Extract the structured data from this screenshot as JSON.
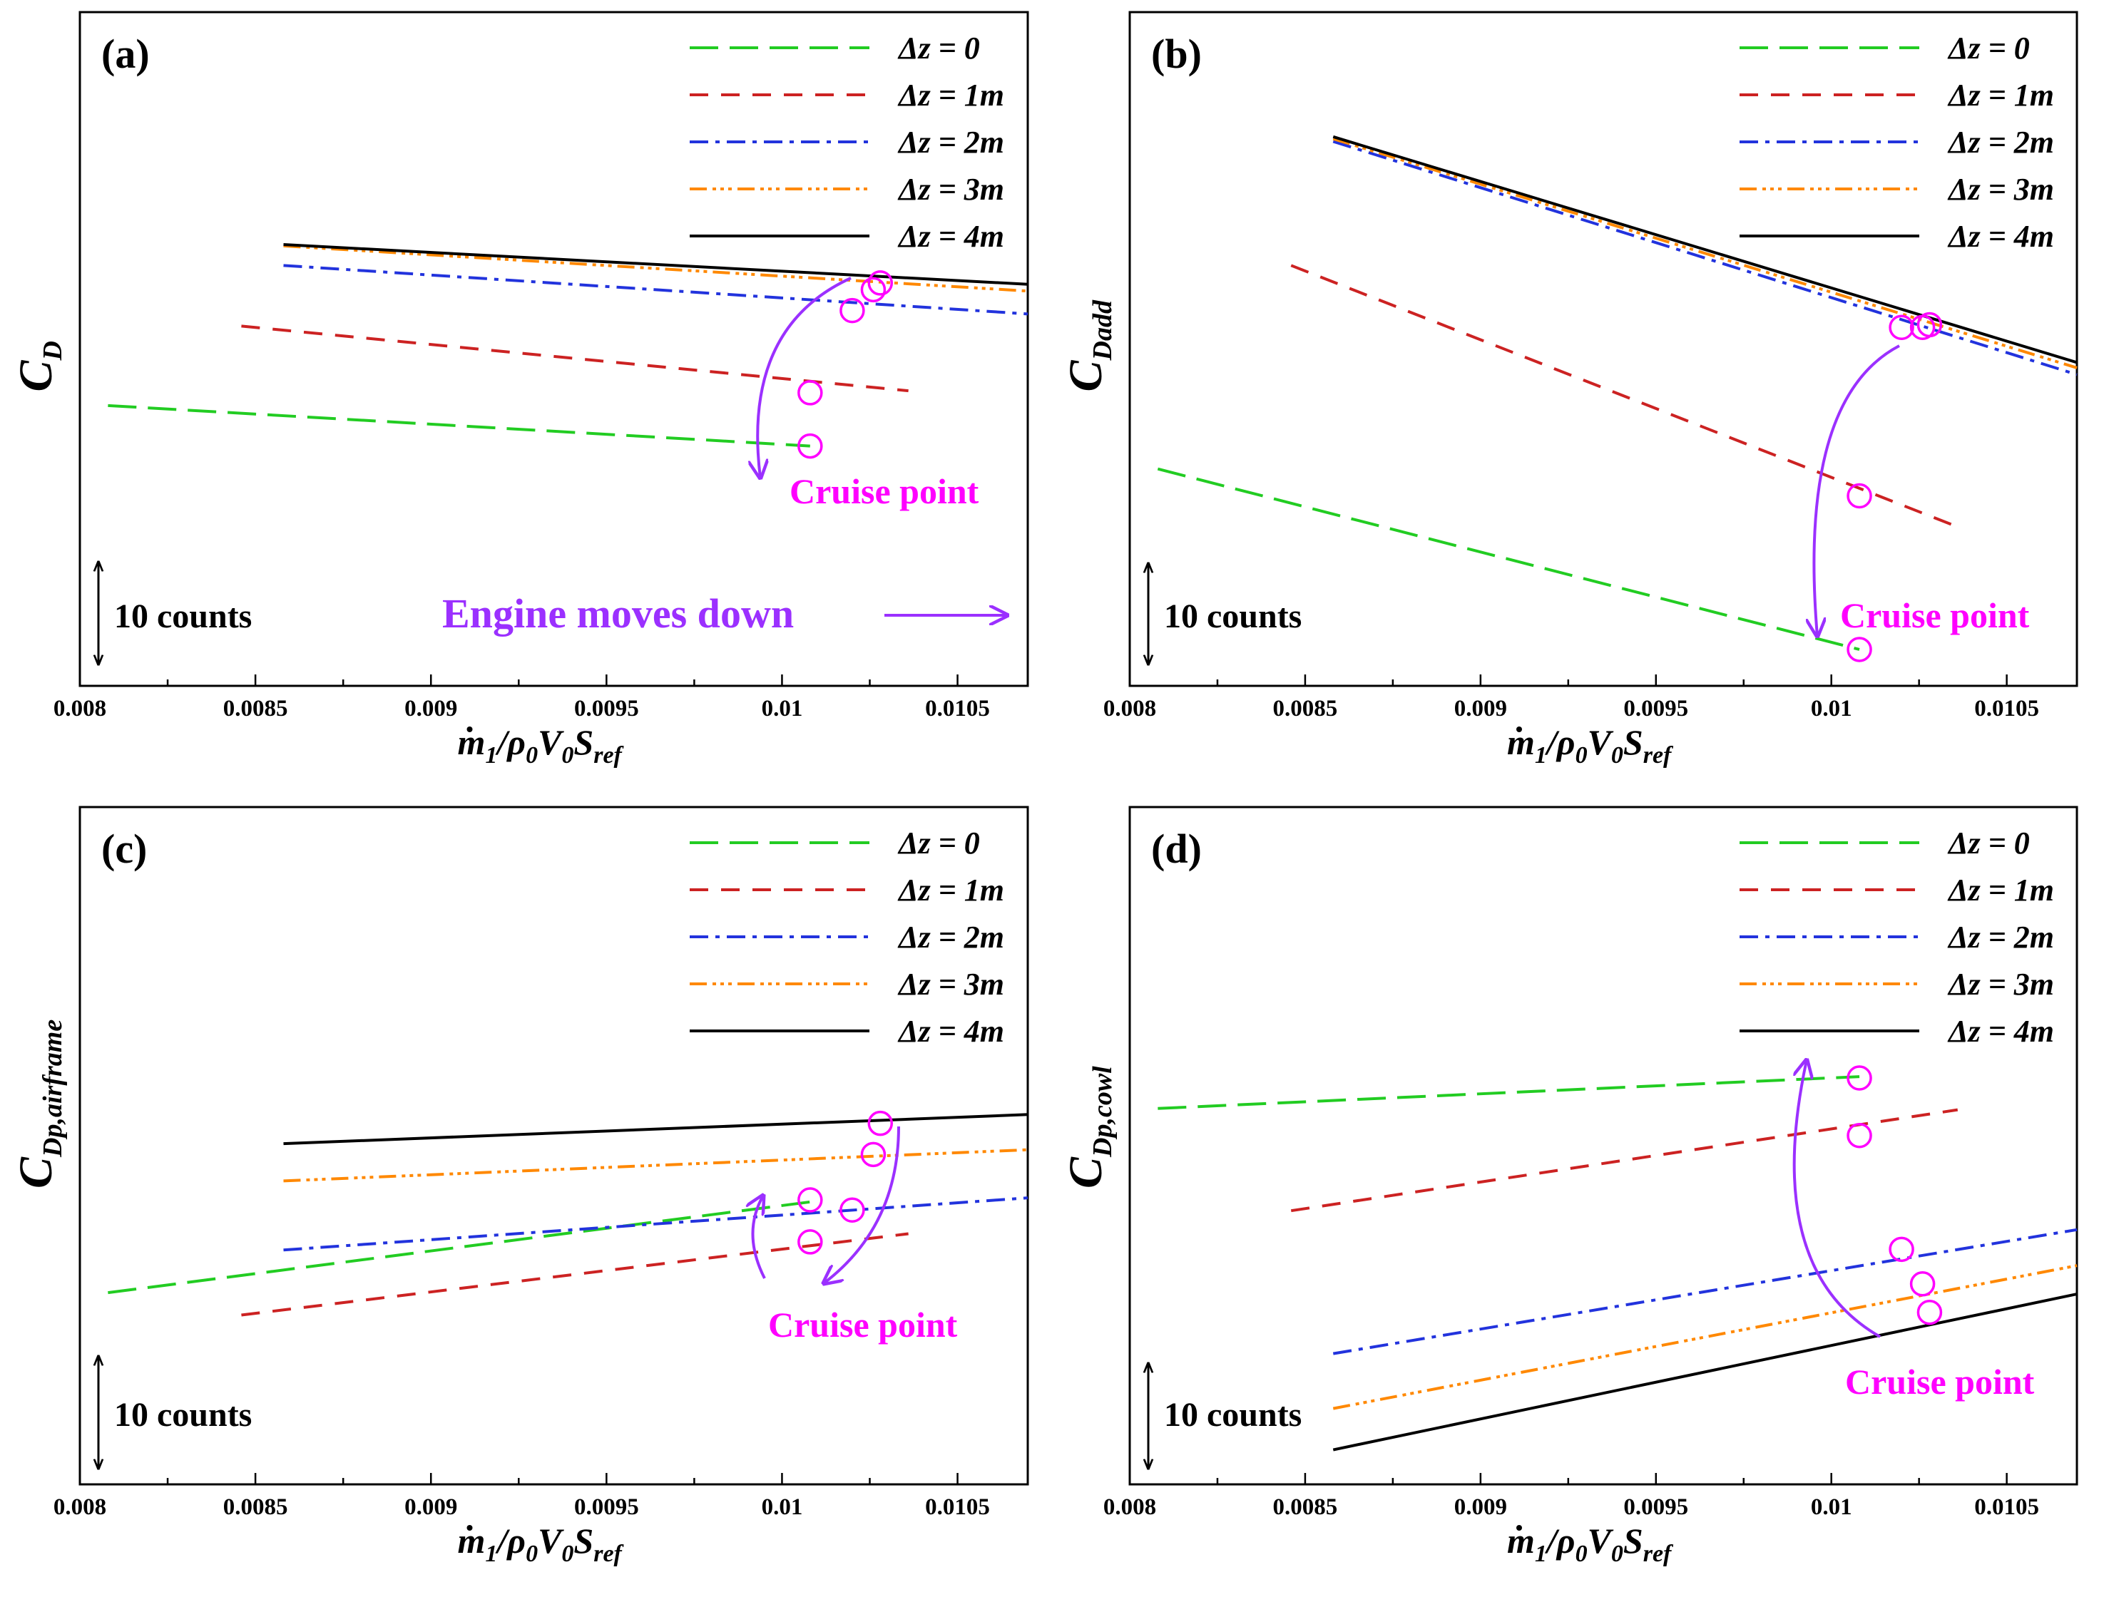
{
  "figure": {
    "xlabel_parts": [
      "m",
      "1",
      "/ρ",
      "0",
      "V",
      "0",
      "S",
      "ref"
    ],
    "counts_label": "10 counts",
    "cruise_label": "Cruise point",
    "engine_moves_label": "Engine moves down",
    "colors": {
      "dz0": "#22cc22",
      "dz1": "#cc2222",
      "dz2": "#2233dd",
      "dz3": "#ff8800",
      "dz4": "#000000",
      "marker": "#ff00ff",
      "arrow": "#9b30ff"
    },
    "legend": [
      "Δz = 0",
      "Δz = 1m",
      "Δz = 2m",
      "Δz = 3m",
      "Δz = 4m"
    ]
  },
  "chart_data": [
    {
      "panel": "(a)",
      "type": "line",
      "ylabel_main": "C",
      "ylabel_sub": "D",
      "xlim": [
        0.008,
        0.0107
      ],
      "ylim": [
        0,
        100
      ],
      "xticks": [
        "0.008",
        "0.0085",
        "0.009",
        "0.0095",
        "0.01",
        "0.0105"
      ],
      "series": [
        {
          "name": "Δz = 0",
          "x": [
            0.00808,
            0.01008
          ],
          "y": [
            41.6,
            35.6
          ]
        },
        {
          "name": "Δz = 1m",
          "x": [
            0.00846,
            0.01036
          ],
          "y": [
            53.4,
            43.8
          ]
        },
        {
          "name": "Δz = 2m",
          "x": [
            0.00858,
            0.0107
          ],
          "y": [
            62.4,
            55.2
          ]
        },
        {
          "name": "Δz = 3m",
          "x": [
            0.00858,
            0.0107
          ],
          "y": [
            65.3,
            58.6
          ]
        },
        {
          "name": "Δz = 4m",
          "x": [
            0.00858,
            0.0107
          ],
          "y": [
            65.5,
            59.6
          ]
        }
      ],
      "cruise_points": [
        {
          "x": 0.01008,
          "y": 35.6
        },
        {
          "x": 0.01008,
          "y": 43.5
        },
        {
          "x": 0.0102,
          "y": 55.7
        },
        {
          "x": 0.01026,
          "y": 58.8
        },
        {
          "x": 0.01028,
          "y": 59.8
        }
      ],
      "annotations": [
        "Cruise point",
        "10 counts",
        "Engine moves down"
      ]
    },
    {
      "panel": "(b)",
      "type": "line",
      "ylabel_main": "C",
      "ylabel_sub": "Dadd",
      "xlim": [
        0.008,
        0.0107
      ],
      "ylim": [
        0,
        100
      ],
      "xticks": [
        "0.008",
        "0.0085",
        "0.009",
        "0.0095",
        "0.01",
        "0.0105"
      ],
      "series": [
        {
          "name": "Δz = 0",
          "x": [
            0.00808,
            0.01008
          ],
          "y": [
            32.2,
            5.4
          ]
        },
        {
          "name": "Δz = 1m",
          "x": [
            0.00846,
            0.01036
          ],
          "y": [
            62.4,
            23.6
          ]
        },
        {
          "name": "Δz = 2m",
          "x": [
            0.00858,
            0.0107
          ],
          "y": [
            80.8,
            46.2
          ]
        },
        {
          "name": "Δz = 3m",
          "x": [
            0.00858,
            0.0107
          ],
          "y": [
            81.2,
            47.2
          ]
        },
        {
          "name": "Δz = 4m",
          "x": [
            0.00858,
            0.0107
          ],
          "y": [
            81.5,
            48.0
          ]
        }
      ],
      "cruise_points": [
        {
          "x": 0.01008,
          "y": 5.4
        },
        {
          "x": 0.01008,
          "y": 28.2
        },
        {
          "x": 0.0102,
          "y": 53.2
        },
        {
          "x": 0.01026,
          "y": 53.2
        },
        {
          "x": 0.01028,
          "y": 53.6
        }
      ],
      "annotations": [
        "Cruise point",
        "10 counts"
      ]
    },
    {
      "panel": "(c)",
      "type": "line",
      "ylabel_main": "C",
      "ylabel_sub": "Dp,airframe",
      "xlim": [
        0.008,
        0.0107
      ],
      "ylim": [
        0,
        100
      ],
      "xticks": [
        "0.008",
        "0.0085",
        "0.009",
        "0.0095",
        "0.01",
        "0.0105"
      ],
      "series": [
        {
          "name": "Δz = 0",
          "x": [
            0.00808,
            0.01008
          ],
          "y": [
            28.3,
            41.7
          ]
        },
        {
          "name": "Δz = 1m",
          "x": [
            0.00846,
            0.01036
          ],
          "y": [
            25.0,
            37.0
          ]
        },
        {
          "name": "Δz = 2m",
          "x": [
            0.00858,
            0.0107
          ],
          "y": [
            34.6,
            42.3
          ]
        },
        {
          "name": "Δz = 3m",
          "x": [
            0.00858,
            0.0107
          ],
          "y": [
            44.8,
            49.4
          ]
        },
        {
          "name": "Δz = 4m",
          "x": [
            0.00858,
            0.0107
          ],
          "y": [
            50.3,
            54.6
          ]
        }
      ],
      "cruise_points": [
        {
          "x": 0.01008,
          "y": 42.0
        },
        {
          "x": 0.01008,
          "y": 35.8
        },
        {
          "x": 0.0102,
          "y": 40.5
        },
        {
          "x": 0.01026,
          "y": 48.7
        },
        {
          "x": 0.01028,
          "y": 53.3
        }
      ],
      "annotations": [
        "Cruise point",
        "10 counts"
      ]
    },
    {
      "panel": "(d)",
      "type": "line",
      "ylabel_main": "C",
      "ylabel_sub": "Dp,cowl",
      "xlim": [
        0.008,
        0.0107
      ],
      "ylim": [
        0,
        100
      ],
      "xticks": [
        "0.008",
        "0.0085",
        "0.009",
        "0.0095",
        "0.01",
        "0.0105"
      ],
      "series": [
        {
          "name": "Δz = 0",
          "x": [
            0.00808,
            0.01008
          ],
          "y": [
            55.5,
            60.2
          ]
        },
        {
          "name": "Δz = 1m",
          "x": [
            0.00846,
            0.01036
          ],
          "y": [
            40.4,
            55.3
          ]
        },
        {
          "name": "Δz = 2m",
          "x": [
            0.00858,
            0.0107
          ],
          "y": [
            19.3,
            37.6
          ]
        },
        {
          "name": "Δz = 3m",
          "x": [
            0.00858,
            0.0107
          ],
          "y": [
            11.2,
            32.3
          ]
        },
        {
          "name": "Δz = 4m",
          "x": [
            0.00858,
            0.0107
          ],
          "y": [
            5.1,
            28.1
          ]
        }
      ],
      "cruise_points": [
        {
          "x": 0.01008,
          "y": 60.0
        },
        {
          "x": 0.01008,
          "y": 51.5
        },
        {
          "x": 0.0102,
          "y": 34.7
        },
        {
          "x": 0.01026,
          "y": 29.6
        },
        {
          "x": 0.01028,
          "y": 25.4
        }
      ],
      "annotations": [
        "Cruise point",
        "10 counts"
      ]
    }
  ]
}
